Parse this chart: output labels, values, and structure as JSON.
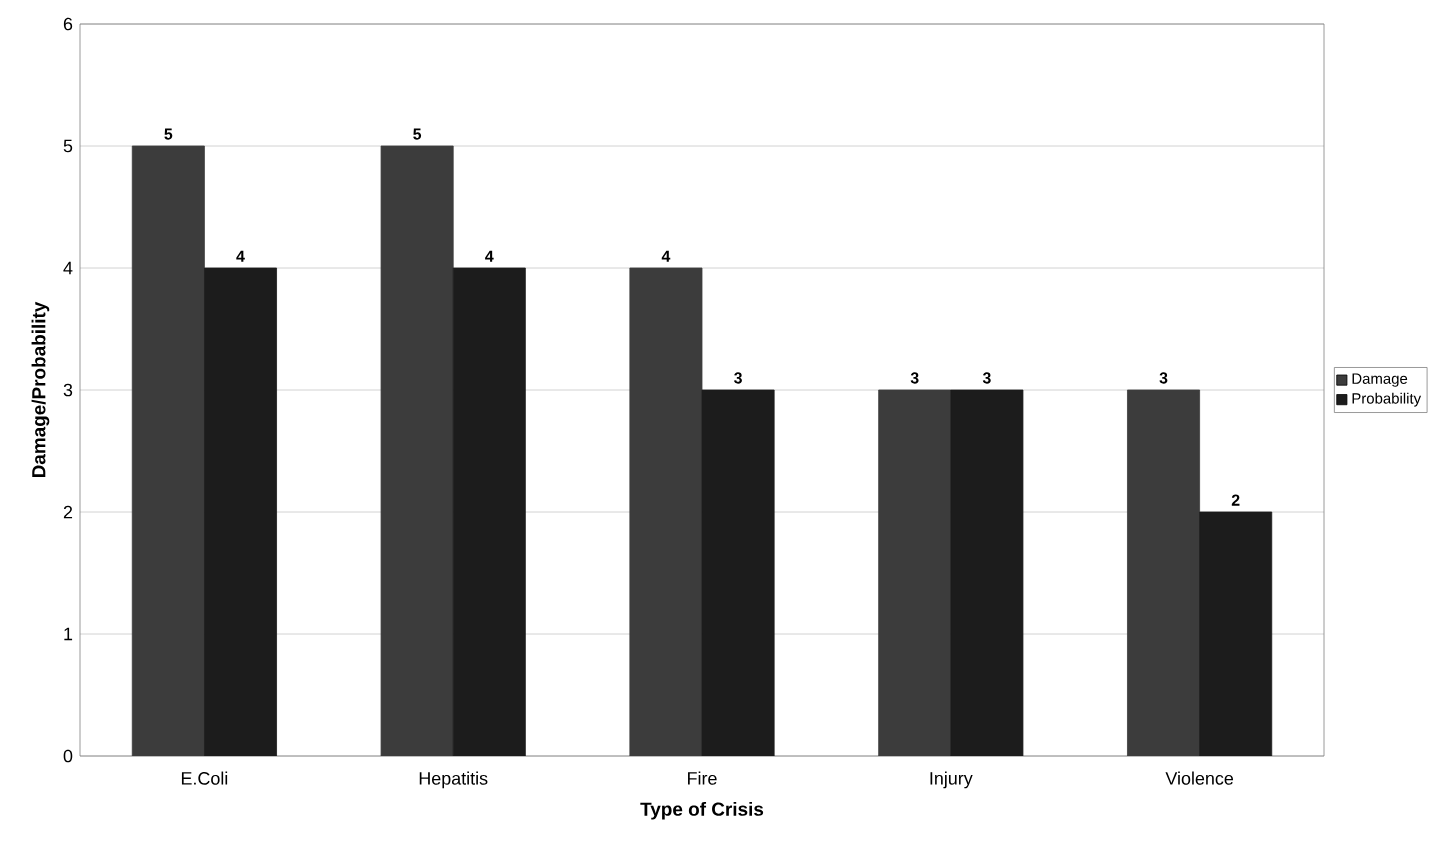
{
  "chart_data": {
    "type": "bar",
    "xlabel": "Type of Crisis",
    "ylabel": "Damage/Probability",
    "categories": [
      "E.Coli",
      "Hepatitis",
      "Fire",
      "Injury",
      "Violence"
    ],
    "series": [
      {
        "name": "Damage",
        "color": "#3c3c3c",
        "values": [
          5,
          5,
          4,
          3,
          3
        ]
      },
      {
        "name": "Probability",
        "color": "#1c1c1c",
        "values": [
          4,
          4,
          3,
          3,
          2
        ]
      }
    ],
    "ylim": [
      0,
      6
    ],
    "yticks": [
      0,
      1,
      2,
      3,
      4,
      5,
      6
    ],
    "grid": "y",
    "legend": "right",
    "data_labels": true
  }
}
